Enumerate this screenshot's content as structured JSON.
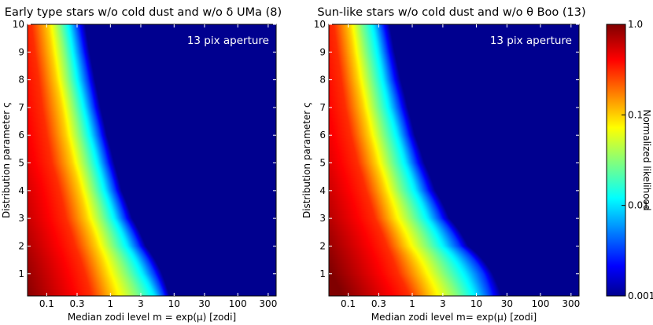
{
  "chart_data": [
    {
      "type": "heatmap",
      "title": "Early type stars w/o cold dust and w/o δ UMa (8)",
      "xlabel": "Median zodi level m = exp(μ) [zodi]",
      "ylabel": "Distribution parameter ς",
      "annotation": "13 pix aperture",
      "x_scale": "log",
      "xlim": [
        0.05,
        400
      ],
      "ylim": [
        0.2,
        10
      ],
      "x_ticks": [
        0.1,
        0.3,
        1,
        3,
        10,
        30,
        100,
        300
      ],
      "x_tick_labels": [
        "0.1",
        "0.3",
        "1",
        "3",
        "10",
        "30",
        "100",
        "300"
      ],
      "y_ticks": [
        1,
        2,
        3,
        4,
        5,
        6,
        7,
        8,
        9,
        10
      ],
      "y_tick_labels": [
        "1",
        "2",
        "3",
        "4",
        "5",
        "6",
        "7",
        "8",
        "9",
        "10"
      ],
      "contours": {
        "sigma": [
          0.2,
          1,
          2,
          3,
          4,
          5,
          6,
          7,
          8,
          9,
          10
        ],
        "normalized_likelihood": [
          0.3,
          0.1,
          0.03,
          0.01,
          0.003,
          0.001
        ],
        "m_at_level": [
          [
            0.5,
            0.4,
            0.28,
            0.2,
            0.16,
            0.12,
            0.1,
            0.085,
            0.075,
            0.065,
            0.058
          ],
          [
            1.1,
            0.85,
            0.6,
            0.42,
            0.33,
            0.25,
            0.2,
            0.17,
            0.14,
            0.12,
            0.105
          ],
          [
            2.6,
            1.8,
            1.1,
            0.75,
            0.55,
            0.42,
            0.33,
            0.27,
            0.22,
            0.19,
            0.16
          ],
          [
            5.0,
            3.3,
            1.9,
            1.2,
            0.85,
            0.65,
            0.5,
            0.4,
            0.32,
            0.27,
            0.23
          ],
          [
            7.0,
            5.0,
            2.8,
            1.7,
            1.2,
            0.9,
            0.7,
            0.55,
            0.45,
            0.37,
            0.31
          ],
          [
            8.5,
            6.5,
            3.6,
            2.2,
            1.5,
            1.15,
            0.88,
            0.7,
            0.57,
            0.47,
            0.4
          ]
        ]
      }
    },
    {
      "type": "heatmap",
      "title": "Sun-like stars w/o cold dust and w/o θ Boo (13)",
      "xlabel": "Median zodi level m= exp(μ) [zodi]",
      "ylabel": "Distribution parameter ς",
      "annotation": "13 pix aperture",
      "x_scale": "log",
      "xlim": [
        0.05,
        400
      ],
      "ylim": [
        0.2,
        10
      ],
      "x_ticks": [
        0.1,
        0.3,
        1,
        3,
        10,
        30,
        100,
        300
      ],
      "x_tick_labels": [
        "0.1",
        "0.3",
        "1",
        "3",
        "10",
        "30",
        "100",
        "300"
      ],
      "y_ticks": [
        1,
        2,
        3,
        4,
        5,
        6,
        7,
        8,
        9,
        10
      ],
      "y_tick_labels": [
        "1",
        "2",
        "3",
        "4",
        "5",
        "6",
        "7",
        "8",
        "9",
        "10"
      ],
      "contours": {
        "sigma": [
          0.2,
          1,
          2,
          3,
          4,
          5,
          6,
          7,
          8,
          9,
          10
        ],
        "normalized_likelihood": [
          0.3,
          0.1,
          0.03,
          0.01,
          0.003,
          0.001
        ],
        "m_at_level": [
          [
            0.9,
            0.6,
            0.4,
            0.26,
            0.19,
            0.14,
            0.11,
            0.09,
            0.078,
            0.068,
            0.06
          ],
          [
            2.0,
            1.4,
            0.8,
            0.5,
            0.37,
            0.27,
            0.21,
            0.17,
            0.14,
            0.12,
            0.105
          ],
          [
            5.0,
            3.2,
            1.7,
            1.0,
            0.65,
            0.47,
            0.36,
            0.28,
            0.23,
            0.19,
            0.16
          ],
          [
            10,
            7.0,
            3.2,
            1.8,
            1.15,
            0.8,
            0.6,
            0.45,
            0.36,
            0.3,
            0.25
          ],
          [
            17,
            13,
            5.5,
            2.8,
            1.7,
            1.15,
            0.85,
            0.65,
            0.5,
            0.41,
            0.34
          ],
          [
            25,
            18,
            7.5,
            3.8,
            2.3,
            1.55,
            1.1,
            0.85,
            0.66,
            0.53,
            0.44
          ]
        ]
      }
    }
  ],
  "colorbar": {
    "label": "Normalized likelihood",
    "scale": "log",
    "range": [
      0.001,
      1.0
    ],
    "colormap": "jet",
    "ticks": [
      1.0,
      0.1,
      0.01,
      0.001
    ],
    "tick_labels": [
      "1.0",
      "0.1",
      "0.01",
      "0.001"
    ]
  },
  "colors": {
    "background_low": "#00008f",
    "peak": "#800000",
    "frame": "#000000"
  }
}
